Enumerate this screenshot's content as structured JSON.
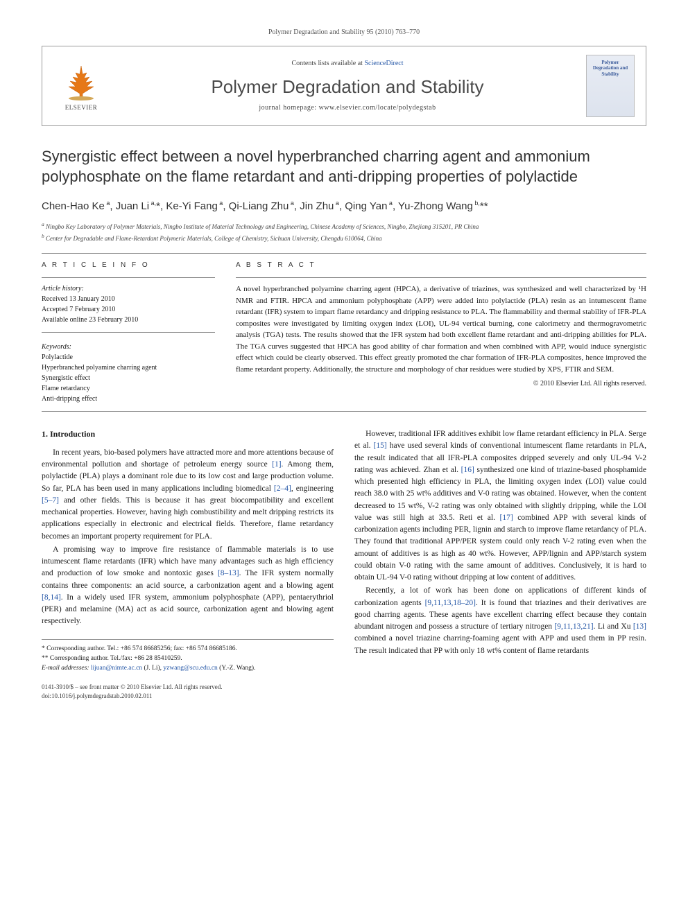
{
  "running_header": "Polymer Degradation and Stability 95 (2010) 763–770",
  "header_box": {
    "contents_prefix": "Contents lists available at ",
    "contents_link": "ScienceDirect",
    "journal_name": "Polymer Degradation and Stability",
    "homepage_prefix": "journal homepage: ",
    "homepage_url": "www.elsevier.com/locate/polydegstab",
    "publisher": "ELSEVIER",
    "cover_text": "Polymer Degradation and Stability"
  },
  "article": {
    "title": "Synergistic effect between a novel hyperbranched charring agent and ammonium polyphosphate on the flame retardant and anti-dripping properties of polylactide",
    "authors_html": "Chen-Hao Ke<sup> a</sup>, Juan Li<sup> a,</sup>*, Ke-Yi Fang<sup> a</sup>, Qi-Liang Zhu<sup> a</sup>, Jin Zhu<sup> a</sup>, Qing Yan<sup> a</sup>, Yu-Zhong Wang<sup> b,</sup>**",
    "affiliations": {
      "a": "Ningbo Key Laboratory of Polymer Materials, Ningbo Institute of Material Technology and Engineering, Chinese Academy of Sciences, Ningbo, Zhejiang 315201, PR China",
      "b": "Center for Degradable and Flame-Retardant Polymeric Materials, College of Chemistry, Sichuan University, Chengdu 610064, China"
    }
  },
  "info_label": "A R T I C L E   I N F O",
  "abstract_label": "A B S T R A C T",
  "history": {
    "label": "Article history:",
    "received": "Received 13 January 2010",
    "accepted": "Accepted 7 February 2010",
    "online": "Available online 23 February 2010"
  },
  "keywords": {
    "label": "Keywords:",
    "items": [
      "Polylactide",
      "Hyperbranched polyamine charring agent",
      "Synergistic effect",
      "Flame retardancy",
      "Anti-dripping effect"
    ]
  },
  "abstract": "A novel hyperbranched polyamine charring agent (HPCA), a derivative of triazines, was synthesized and well characterized by ¹H NMR and FTIR. HPCA and ammonium polyphosphate (APP) were added into polylactide (PLA) resin as an intumescent flame retardant (IFR) system to impart flame retardancy and dripping resistance to PLA. The flammability and thermal stability of IFR-PLA composites were investigated by limiting oxygen index (LOI), UL-94 vertical burning, cone calorimetry and thermogravometric analysis (TGA) tests. The results showed that the IFR system had both excellent flame retardant and anti-dripping abilities for PLA. The TGA curves suggested that HPCA has good ability of char formation and when combined with APP, would induce synergistic effect which could be clearly observed. This effect greatly promoted the char formation of IFR-PLA composites, hence improved the flame retardant property. Additionally, the structure and morphology of char residues were studied by XPS, FTIR and SEM.",
  "copyright": "© 2010 Elsevier Ltd. All rights reserved.",
  "intro_heading": "1. Introduction",
  "intro_paragraphs_left": [
    "In recent years, bio-based polymers have attracted more and more attentions because of environmental pollution and shortage of petroleum energy source [1]. Among them, polylactide (PLA) plays a dominant role due to its low cost and large production volume. So far, PLA has been used in many applications including biomedical [2–4], engineering [5–7] and other fields. This is because it has great biocompatibility and excellent mechanical properties. However, having high combustibility and melt dripping restricts its applications especially in electronic and electrical fields. Therefore, flame retardancy becomes an important property requirement for PLA.",
    "A promising way to improve fire resistance of flammable materials is to use intumescent flame retardants (IFR) which have many advantages such as high efficiency and production of low smoke and nontoxic gases [8–13]. The IFR system normally contains three components: an acid source, a carbonization agent and a blowing agent [8,14]. In a widely used IFR system, ammonium polyphosphate (APP), pentaerythriol (PER) and melamine (MA) act as acid source, carbonization agent and blowing agent respectively."
  ],
  "intro_paragraphs_right": [
    "However, traditional IFR additives exhibit low flame retardant efficiency in PLA. Serge et al. [15] have used several kinds of conventional intumescent flame retardants in PLA, the result indicated that all IFR-PLA composites dripped severely and only UL-94 V-2 rating was achieved. Zhan et al. [16] synthesized one kind of triazine-based phosphamide which presented high efficiency in PLA, the limiting oxygen index (LOI) value could reach 38.0 with 25 wt% additives and V-0 rating was obtained. However, when the content decreased to 15 wt%, V-2 rating was only obtained with slightly dripping, while the LOI value was still high at 33.5. Reti et al. [17] combined APP with several kinds of carbonization agents including PER, lignin and starch to improve flame retardancy of PLA. They found that traditional APP/PER system could only reach V-2 rating even when the amount of additives is as high as 40 wt%. However, APP/lignin and APP/starch system could obtain V-0 rating with the same amount of additives. Conclusively, it is hard to obtain UL-94 V-0 rating without dripping at low content of additives.",
    "Recently, a lot of work has been done on applications of different kinds of carbonization agents [9,11,13,18–20]. It is found that triazines and their derivatives are good charring agents. These agents have excellent charring effect because they contain abundant nitrogen and possess a structure of tertiary nitrogen [9,11,13,21]. Li and Xu [13] combined a novel triazine charring-foaming agent with APP and used them in PP resin. The result indicated that PP with only 18 wt% content of flame retardants"
  ],
  "footnotes": {
    "corr1": "* Corresponding author. Tel.: +86 574 86685256; fax: +86 574 86685186.",
    "corr2": "** Corresponding author. Tel./fax: +86 28 85410259.",
    "email_label": "E-mail addresses:",
    "email1": "lijuan@nimte.ac.cn",
    "email1_name": "(J. Li),",
    "email2": "yzwang@scu.edu.cn",
    "email2_name": "(Y.-Z. Wang)."
  },
  "footer": {
    "line1": "0141-3910/$ – see front matter © 2010 Elsevier Ltd. All rights reserved.",
    "line2": "doi:10.1016/j.polymdegradstab.2010.02.011"
  },
  "ref_color": "#2456a6",
  "link_refs_left": [
    "[1]",
    "[2–4]",
    "[5–7]",
    "[8–13]",
    "[8,14]"
  ],
  "link_refs_right": [
    "[15]",
    "[16]",
    "[17]",
    "[9,11,13,18–20]",
    "[9,11,13,21]",
    "[13]"
  ]
}
